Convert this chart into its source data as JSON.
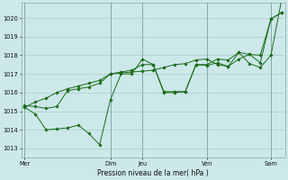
{
  "background_color": "#cce8e8",
  "grid_color": "#aacccc",
  "line_color": "#1a6b1a",
  "marker_color": "#1a6b1a",
  "xlabel": "Pression niveau de la mer( hPa )",
  "ylim": [
    1012.5,
    1020.8
  ],
  "yticks": [
    1013,
    1014,
    1015,
    1016,
    1017,
    1018,
    1019,
    1020
  ],
  "day_labels": [
    "Mer",
    "",
    "",
    "",
    "",
    "",
    "",
    "",
    "Dim",
    "",
    "",
    "Jeu",
    "",
    "",
    "",
    "",
    "",
    "Ven",
    "",
    "",
    "",
    "",
    "",
    "Sam"
  ],
  "day_tick_labels": [
    "Mer",
    "Dim",
    "Jeu",
    "Ven",
    "Sam"
  ],
  "day_positions": [
    0,
    8,
    11,
    17,
    23
  ],
  "series": [
    [
      1015.2,
      1015.5,
      1015.7,
      1016.0,
      1016.2,
      1016.35,
      1016.5,
      1016.65,
      1017.0,
      1017.05,
      1017.1,
      1017.15,
      1017.2,
      1017.35,
      1017.5,
      1017.55,
      1017.75,
      1017.8,
      1017.5,
      1017.4,
      1017.8,
      1018.05,
      1017.6,
      1019.95,
      1020.3
    ],
    [
      1015.3,
      1015.25,
      1015.15,
      1015.25,
      1016.1,
      1016.2,
      1016.3,
      1016.5,
      1017.0,
      1017.1,
      1017.2,
      1017.5,
      1017.5,
      1016.05,
      1016.05,
      1016.05,
      1017.5,
      1017.45,
      1017.6,
      1017.4,
      1018.15,
      1017.55,
      1017.35,
      1018.0,
      1021.0
    ],
    [
      1015.2,
      1014.85,
      1014.0,
      1014.05,
      1014.1,
      1014.25,
      1013.8,
      1013.2,
      1015.6,
      1017.0,
      1017.0,
      1017.8,
      1017.5,
      1016.0,
      1016.0,
      1016.05,
      1017.5,
      1017.5,
      1017.8,
      1017.75,
      1018.15,
      1018.05,
      1018.0,
      1019.95,
      1020.3
    ]
  ],
  "vline_positions": [
    0,
    8,
    11,
    17,
    23
  ],
  "figsize": [
    3.2,
    2.0
  ],
  "dpi": 100
}
